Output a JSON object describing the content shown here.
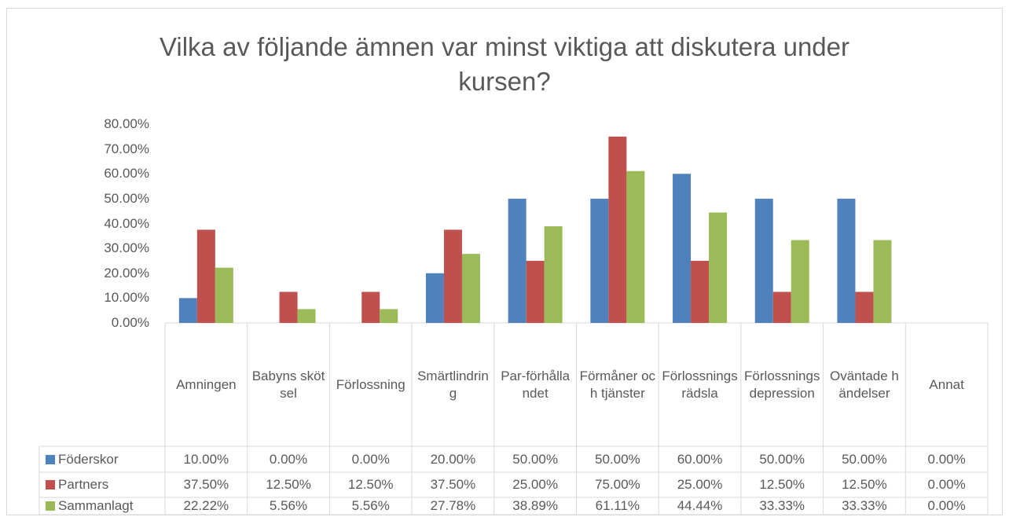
{
  "chart_data": {
    "type": "bar",
    "title": "Vilka av följande ämnen var minst viktiga att diskutera under kursen?",
    "categories": [
      "Amningen",
      "Babyns skötsel",
      "Förlossning",
      "Smärtlindring",
      "Par-förhållandet",
      "Förmåner och tjänster",
      "Förlossningsrädsla",
      "Förlossningsdepression",
      "Oväntade händelser",
      "Annat"
    ],
    "series": [
      {
        "name": "Föderskor",
        "color": "#4f81bd",
        "values": [
          10,
          0,
          0,
          20,
          50,
          50,
          60,
          50,
          50,
          0
        ],
        "value_labels": [
          "10.00%",
          "0.00%",
          "0.00%",
          "20.00%",
          "50.00%",
          "50.00%",
          "60.00%",
          "50.00%",
          "50.00%",
          "0.00%"
        ]
      },
      {
        "name": "Partners",
        "color": "#c0504d",
        "values": [
          37.5,
          12.5,
          12.5,
          37.5,
          25,
          75,
          25,
          12.5,
          12.5,
          0
        ],
        "value_labels": [
          "37.50%",
          "12.50%",
          "12.50%",
          "37.50%",
          "25.00%",
          "75.00%",
          "25.00%",
          "12.50%",
          "12.50%",
          "0.00%"
        ]
      },
      {
        "name": "Sammanlagt",
        "color": "#9bbb59",
        "values": [
          22.22,
          5.56,
          5.56,
          27.78,
          38.89,
          61.11,
          44.44,
          33.33,
          33.33,
          0
        ],
        "value_labels": [
          "22.22%",
          "5.56%",
          "5.56%",
          "27.78%",
          "38.89%",
          "61.11%",
          "44.44%",
          "33.33%",
          "33.33%",
          "0.00%"
        ]
      }
    ],
    "ylim": [
      0,
      80
    ],
    "yticks": [
      {
        "value": 0,
        "label": "0.00%"
      },
      {
        "value": 10,
        "label": "10.00%"
      },
      {
        "value": 20,
        "label": "20.00%"
      },
      {
        "value": 30,
        "label": "30.00%"
      },
      {
        "value": 40,
        "label": "40.00%"
      },
      {
        "value": 50,
        "label": "50.00%"
      },
      {
        "value": 60,
        "label": "60.00%"
      },
      {
        "value": 70,
        "label": "70.00%"
      },
      {
        "value": 80,
        "label": "80.00%"
      }
    ],
    "grid": false,
    "legend": "data-table"
  }
}
